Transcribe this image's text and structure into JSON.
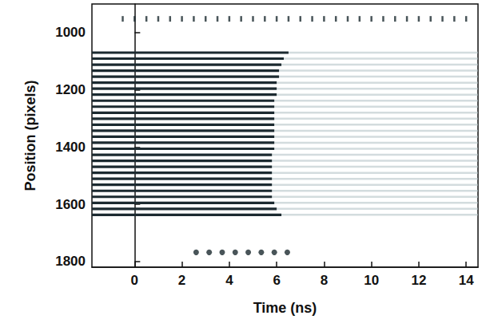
{
  "chart_data": {
    "type": "line",
    "xlabel": "Time (ns)",
    "ylabel": "Position (pixels)",
    "xlim": [
      -1.8,
      14.5
    ],
    "ylim": [
      1820,
      900
    ],
    "xticks": [
      0,
      2,
      4,
      6,
      8,
      10,
      12,
      14
    ],
    "yticks": [
      1000,
      1200,
      1400,
      1600,
      1800
    ],
    "grid": false,
    "streaks": {
      "color": "#1c2a30",
      "positions": [
        1070,
        1091,
        1112,
        1133,
        1154,
        1175,
        1196,
        1217,
        1238,
        1259,
        1280,
        1301,
        1322,
        1343,
        1364,
        1385,
        1406,
        1427,
        1448,
        1469,
        1490,
        1511,
        1532,
        1553,
        1574,
        1595,
        1616,
        1637
      ],
      "end_times": [
        6.5,
        6.3,
        6.2,
        6.1,
        6.1,
        6.0,
        6.0,
        6.0,
        5.9,
        5.9,
        5.9,
        5.9,
        5.9,
        5.9,
        5.9,
        5.9,
        5.9,
        5.8,
        5.8,
        5.8,
        5.8,
        5.8,
        5.8,
        5.8,
        5.8,
        5.9,
        6.0,
        6.2
      ]
    },
    "afterglow": {
      "color": "#aebfc2"
    },
    "fiducials": [
      {
        "position": 952,
        "marker": "dash",
        "color": "#1c2a30",
        "times": [
          -0.5,
          0,
          0.5,
          1,
          1.5,
          2,
          2.5,
          3,
          3.5,
          4,
          4.5,
          5,
          5.5,
          6,
          6.5,
          7,
          7.5,
          8,
          8.5,
          9,
          9.5,
          10,
          10.5,
          11,
          11.5,
          12,
          12.5,
          13,
          13.5,
          14
        ]
      },
      {
        "position": 1768,
        "marker": "circle",
        "color": "#1c2a30",
        "times": [
          2.6,
          3.15,
          3.7,
          4.25,
          4.8,
          5.35,
          5.9,
          6.45
        ]
      }
    ]
  }
}
